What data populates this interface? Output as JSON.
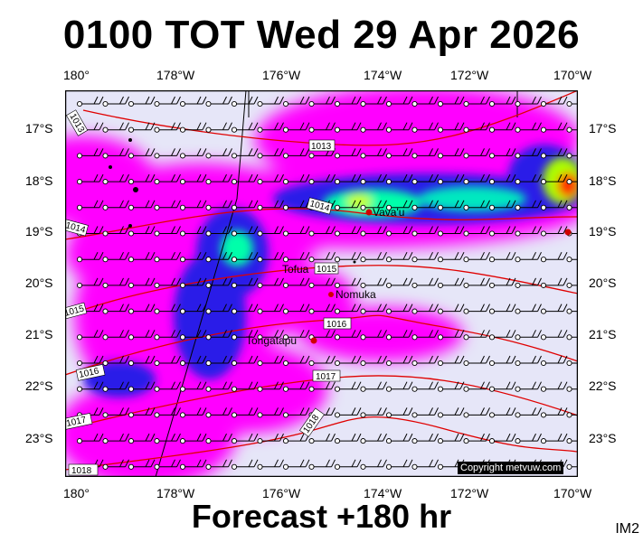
{
  "title": "0100 TOT Wed 29 Apr 2026",
  "footer": "Forecast +180 hr",
  "image_tag": "IM2",
  "credit": "Copyright metvuw.com",
  "axes": {
    "lon_labels": [
      "180°",
      "178°W",
      "176°W",
      "174°W",
      "172°W",
      "170°W"
    ],
    "lat_labels": [
      "17°S",
      "18°S",
      "19°S",
      "20°S",
      "21°S",
      "22°S",
      "23°S"
    ]
  },
  "places": [
    {
      "name": "Vava'u"
    },
    {
      "name": "Tofua"
    },
    {
      "name": "Nomuka"
    },
    {
      "name": "Tongatapu"
    }
  ],
  "isobars": [
    "1013",
    "1013",
    "1014",
    "1014",
    "1015",
    "1015",
    "1016",
    "1016",
    "1016",
    "1017",
    "1017",
    "1018",
    "1018"
  ],
  "colors": {
    "background_precip": "#e6e6f8",
    "precip_light": "#ff00ff",
    "precip_medium": "#2020f0",
    "precip_heavy": "#00ffaa",
    "precip_very_heavy": "#ffff00",
    "precip_extreme": "#ff2a00",
    "isobar": "#ff0000",
    "wind_barb": "#000000"
  }
}
